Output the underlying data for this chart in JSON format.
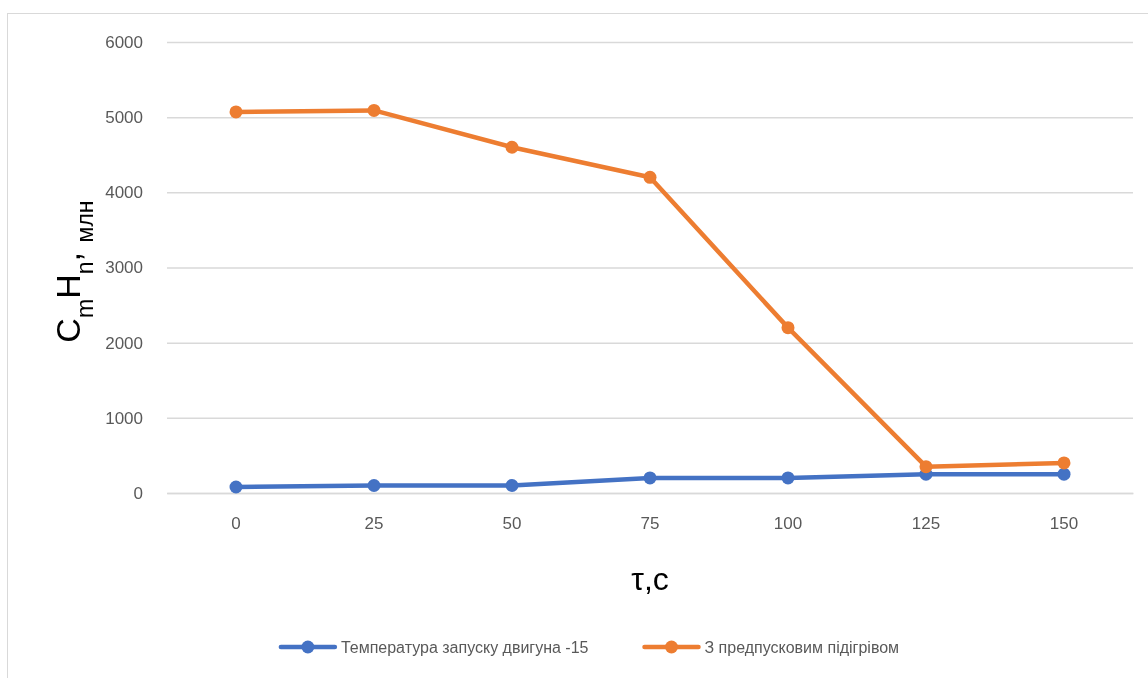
{
  "chart_data": {
    "type": "line",
    "xlabel": "τ,с",
    "ylabel": "C$_{m}$H$_{n}$, $_{млн}$",
    "categories": [
      "0",
      "25",
      "50",
      "75",
      "100",
      "125",
      "150"
    ],
    "series": [
      {
        "name": "Температура запуску двигуна -15",
        "color": "#4472c4",
        "values": [
          80,
          100,
          100,
          200,
          200,
          250,
          250
        ]
      },
      {
        "name": "З предпусковим підігрівом",
        "color": "#ed7d31",
        "values": [
          5070,
          5090,
          4600,
          4200,
          2200,
          350,
          400
        ]
      }
    ],
    "ylim": [
      0,
      6000
    ],
    "yticks": [
      0,
      1000,
      2000,
      3000,
      4000,
      5000,
      6000
    ],
    "grid": "y",
    "legend": "bottom",
    "marker": "circle",
    "line_style": "solid"
  }
}
